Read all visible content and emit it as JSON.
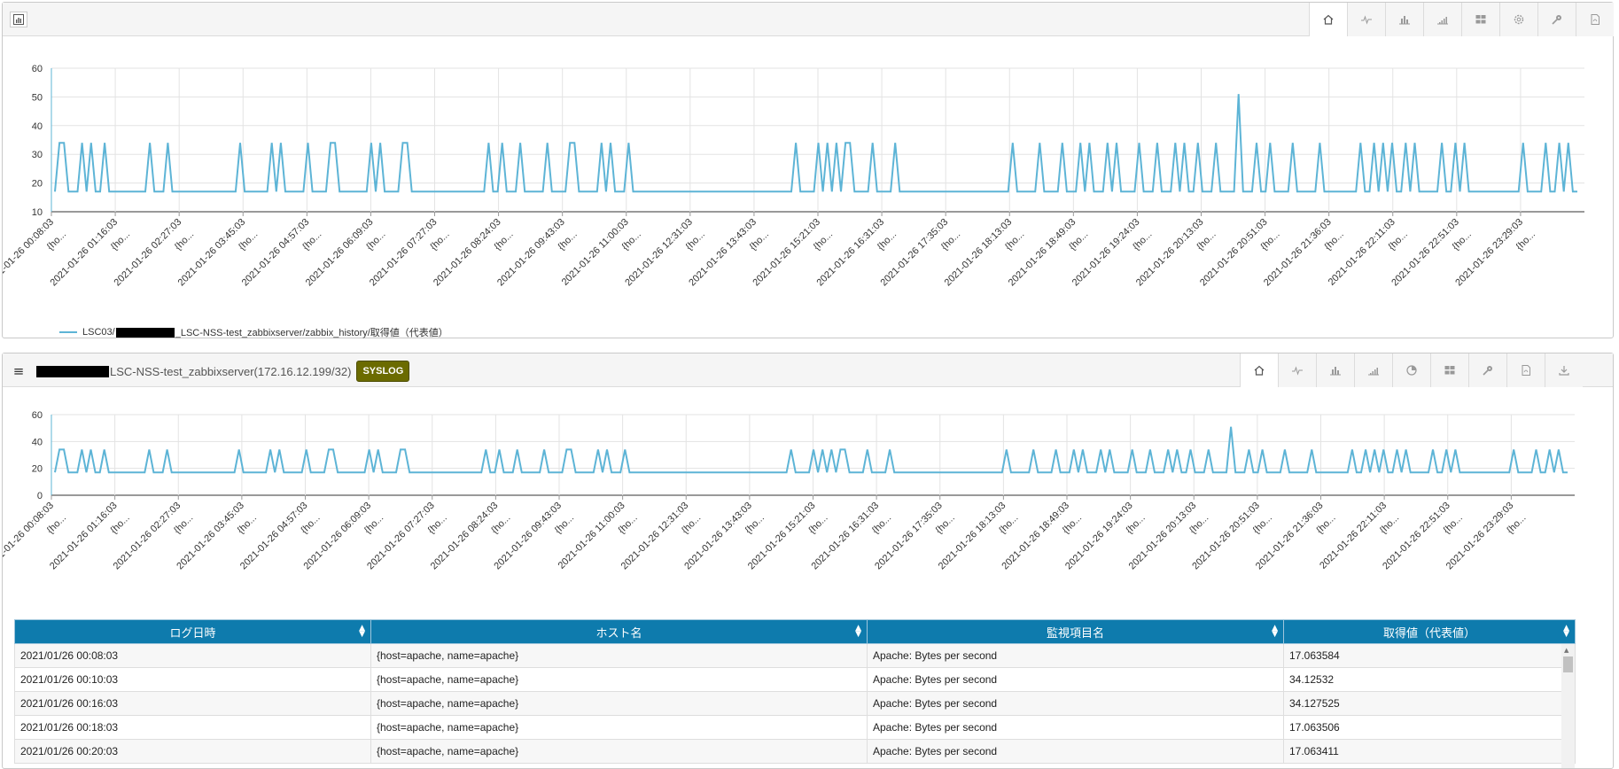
{
  "panel1": {
    "toolbar": [
      "home-icon",
      "line-chart-icon",
      "bar-chart-icon",
      "area-chart-icon",
      "grid-icon",
      "settings-icon",
      "key-icon",
      "pdf-icon"
    ],
    "legend": {
      "prefix": "LSC03/",
      "suffix": "_LSC-NSS-test_zabbixserver/zabbix_history/取得値（代表値）",
      "color": "#5db4d6"
    }
  },
  "panel2": {
    "hostname": "LSC-NSS-test_zabbixserver(172.16.12.199/32)",
    "tag": "SYSLOG",
    "tag_color": "#6b6b00",
    "toolbar": [
      "home-icon",
      "line-chart-icon",
      "bar-chart-icon",
      "area-chart-icon",
      "pie-chart-icon",
      "grid-icon",
      "key-icon",
      "pdf-icon",
      "download-icon"
    ],
    "table": {
      "header_color": "#0e7bad",
      "columns": [
        "ログ日時",
        "ホスト名",
        "監視項目名",
        "取得値（代表値）"
      ],
      "rows": [
        [
          "2021/01/26 00:08:03",
          "{host=apache, name=apache}",
          "Apache: Bytes per second",
          "17.063584"
        ],
        [
          "2021/01/26 00:10:03",
          "{host=apache, name=apache}",
          "Apache: Bytes per second",
          "34.12532"
        ],
        [
          "2021/01/26 00:16:03",
          "{host=apache, name=apache}",
          "Apache: Bytes per second",
          "34.127525"
        ],
        [
          "2021/01/26 00:18:03",
          "{host=apache, name=apache}",
          "Apache: Bytes per second",
          "17.063506"
        ],
        [
          "2021/01/26 00:20:03",
          "{host=apache, name=apache}",
          "Apache: Bytes per second",
          "17.063411"
        ]
      ]
    }
  },
  "chart_data": [
    {
      "type": "line",
      "yticks": [
        10,
        20,
        30,
        40,
        50,
        60
      ],
      "ylim": [
        10,
        60
      ],
      "xticks": [
        "2021-01-26 00:08:03",
        "2021-01-26 01:16:03",
        "2021-01-26 02:27:03",
        "2021-01-26 03:45:03",
        "2021-01-26 04:57:03",
        "2021-01-26 06:09:03",
        "2021-01-26 07:27:03",
        "2021-01-26 08:24:03",
        "2021-01-26 09:43:03",
        "2021-01-26 11:00:03",
        "2021-01-26 12:31:03",
        "2021-01-26 13:43:03",
        "2021-01-26 15:21:03",
        "2021-01-26 16:31:03",
        "2021-01-26 17:35:03",
        "2021-01-26 18:13:03",
        "2021-01-26 18:49:03",
        "2021-01-26 19:24:03",
        "2021-01-26 20:13:03",
        "2021-01-26 20:51:03",
        "2021-01-26 21:36:03",
        "2021-01-26 22:11:03",
        "2021-01-26 22:51:03",
        "2021-01-26 23:29:03"
      ],
      "xtick_suffix": "{ho...",
      "grid": true,
      "color": "#5db4d6",
      "series": [
        {
          "name": "LSC03/_LSC-NSS-test_zabbixserver/zabbix_history/取得値（代表値）",
          "values": [
            17,
            34,
            34,
            17,
            17,
            17,
            34,
            17,
            34,
            17,
            17,
            34,
            17,
            17,
            17,
            17,
            17,
            17,
            17,
            17,
            17,
            34,
            17,
            17,
            17,
            34,
            17,
            17,
            17,
            17,
            17,
            17,
            17,
            17,
            17,
            17,
            17,
            17,
            17,
            17,
            17,
            34,
            17,
            17,
            17,
            17,
            17,
            17,
            34,
            17,
            34,
            17,
            17,
            17,
            17,
            17,
            34,
            17,
            17,
            17,
            17,
            34,
            34,
            17,
            17,
            17,
            17,
            17,
            17,
            17,
            34,
            17,
            34,
            17,
            17,
            17,
            17,
            34,
            34,
            17,
            17,
            17,
            17,
            17,
            17,
            17,
            17,
            17,
            17,
            17,
            17,
            17,
            17,
            17,
            17,
            17,
            34,
            17,
            17,
            34,
            17,
            17,
            17,
            34,
            17,
            17,
            17,
            17,
            17,
            34,
            17,
            17,
            17,
            17,
            34,
            34,
            17,
            17,
            17,
            17,
            17,
            34,
            17,
            34,
            17,
            17,
            17,
            34,
            17,
            17,
            17,
            17,
            17,
            17,
            17,
            17,
            17,
            17,
            17,
            17,
            17,
            17,
            17,
            17,
            17,
            17,
            17,
            17,
            17,
            17,
            17,
            17,
            17,
            17,
            17,
            17,
            17,
            17,
            17,
            17,
            17,
            17,
            17,
            17,
            34,
            17,
            17,
            17,
            17,
            34,
            17,
            34,
            17,
            34,
            17,
            34,
            34,
            17,
            17,
            17,
            17,
            34,
            17,
            17,
            17,
            17,
            34,
            17,
            17,
            17,
            17,
            17,
            17,
            17,
            17,
            17,
            17,
            17,
            17,
            17,
            17,
            17,
            17,
            17,
            17,
            17,
            17,
            17,
            17,
            17,
            17,
            17,
            34,
            17,
            17,
            17,
            17,
            17,
            34,
            17,
            17,
            17,
            17,
            34,
            17,
            17,
            17,
            34,
            17,
            34,
            17,
            17,
            17,
            34,
            17,
            34,
            17,
            17,
            17,
            17,
            34,
            17,
            17,
            17,
            34,
            17,
            17,
            17,
            34,
            17,
            34,
            17,
            17,
            34,
            17,
            17,
            17,
            34,
            17,
            17,
            17,
            17,
            51,
            17,
            17,
            17,
            34,
            17,
            17,
            34,
            17,
            17,
            17,
            17,
            34,
            17,
            17,
            17,
            17,
            17,
            34,
            17,
            17,
            17,
            17,
            17,
            17,
            17,
            17,
            34,
            17,
            17,
            34,
            17,
            34,
            17,
            34,
            17,
            17,
            34,
            17,
            34,
            17,
            17,
            17,
            17,
            17,
            34,
            17,
            17,
            34,
            17,
            34,
            17,
            17,
            17,
            17,
            17,
            17,
            17,
            17,
            17,
            17,
            17,
            17,
            34,
            17,
            17,
            17,
            17,
            34,
            17,
            17,
            34,
            17,
            34,
            17,
            17
          ]
        }
      ]
    },
    {
      "type": "line",
      "yticks": [
        0,
        20,
        40,
        60
      ],
      "ylim": [
        0,
        60
      ],
      "xticks": [
        "2021-01-26 00:08:03",
        "2021-01-26 01:16:03",
        "2021-01-26 02:27:03",
        "2021-01-26 03:45:03",
        "2021-01-26 04:57:03",
        "2021-01-26 06:09:03",
        "2021-01-26 07:27:03",
        "2021-01-26 08:24:03",
        "2021-01-26 09:43:03",
        "2021-01-26 11:00:03",
        "2021-01-26 12:31:03",
        "2021-01-26 13:43:03",
        "2021-01-26 15:21:03",
        "2021-01-26 16:31:03",
        "2021-01-26 17:35:03",
        "2021-01-26 18:13:03",
        "2021-01-26 18:49:03",
        "2021-01-26 19:24:03",
        "2021-01-26 20:13:03",
        "2021-01-26 20:51:03",
        "2021-01-26 21:36:03",
        "2021-01-26 22:11:03",
        "2021-01-26 22:51:03",
        "2021-01-26 23:29:03"
      ],
      "xtick_suffix": "{ho...",
      "grid": true,
      "color": "#5db4d6",
      "series": [
        {
          "values": [
            17,
            34,
            34,
            17,
            17,
            17,
            34,
            17,
            34,
            17,
            17,
            34,
            17,
            17,
            17,
            17,
            17,
            17,
            17,
            17,
            17,
            34,
            17,
            17,
            17,
            34,
            17,
            17,
            17,
            17,
            17,
            17,
            17,
            17,
            17,
            17,
            17,
            17,
            17,
            17,
            17,
            34,
            17,
            17,
            17,
            17,
            17,
            17,
            34,
            17,
            34,
            17,
            17,
            17,
            17,
            17,
            34,
            17,
            17,
            17,
            17,
            34,
            34,
            17,
            17,
            17,
            17,
            17,
            17,
            17,
            34,
            17,
            34,
            17,
            17,
            17,
            17,
            34,
            34,
            17,
            17,
            17,
            17,
            17,
            17,
            17,
            17,
            17,
            17,
            17,
            17,
            17,
            17,
            17,
            17,
            17,
            34,
            17,
            17,
            34,
            17,
            17,
            17,
            34,
            17,
            17,
            17,
            17,
            17,
            34,
            17,
            17,
            17,
            17,
            34,
            34,
            17,
            17,
            17,
            17,
            17,
            34,
            17,
            34,
            17,
            17,
            17,
            34,
            17,
            17,
            17,
            17,
            17,
            17,
            17,
            17,
            17,
            17,
            17,
            17,
            17,
            17,
            17,
            17,
            17,
            17,
            17,
            17,
            17,
            17,
            17,
            17,
            17,
            17,
            17,
            17,
            17,
            17,
            17,
            17,
            17,
            17,
            17,
            17,
            34,
            17,
            17,
            17,
            17,
            34,
            17,
            34,
            17,
            34,
            17,
            34,
            34,
            17,
            17,
            17,
            17,
            34,
            17,
            17,
            17,
            17,
            34,
            17,
            17,
            17,
            17,
            17,
            17,
            17,
            17,
            17,
            17,
            17,
            17,
            17,
            17,
            17,
            17,
            17,
            17,
            17,
            17,
            17,
            17,
            17,
            17,
            17,
            34,
            17,
            17,
            17,
            17,
            17,
            34,
            17,
            17,
            17,
            17,
            34,
            17,
            17,
            17,
            34,
            17,
            34,
            17,
            17,
            17,
            34,
            17,
            34,
            17,
            17,
            17,
            17,
            34,
            17,
            17,
            17,
            34,
            17,
            17,
            17,
            34,
            17,
            34,
            17,
            17,
            34,
            17,
            17,
            17,
            34,
            17,
            17,
            17,
            17,
            51,
            17,
            17,
            17,
            34,
            17,
            17,
            34,
            17,
            17,
            17,
            17,
            34,
            17,
            17,
            17,
            17,
            17,
            34,
            17,
            17,
            17,
            17,
            17,
            17,
            17,
            17,
            34,
            17,
            17,
            34,
            17,
            34,
            17,
            34,
            17,
            17,
            34,
            17,
            34,
            17,
            17,
            17,
            17,
            17,
            34,
            17,
            17,
            34,
            17,
            34,
            17,
            17,
            17,
            17,
            17,
            17,
            17,
            17,
            17,
            17,
            17,
            17,
            34,
            17,
            17,
            17,
            17,
            34,
            17,
            17,
            34,
            17,
            34,
            17,
            17
          ]
        }
      ]
    }
  ]
}
